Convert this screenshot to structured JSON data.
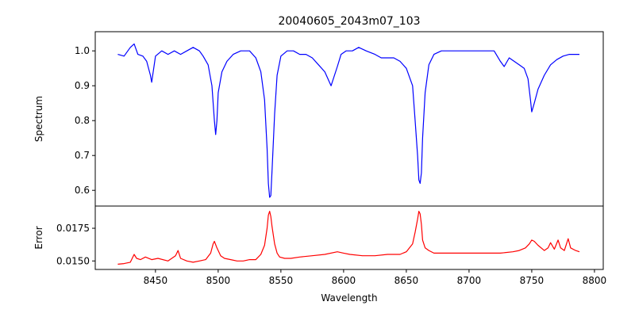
{
  "title": "20040605_2043m07_103",
  "chart_data": [
    {
      "type": "line",
      "name": "spectrum-panel",
      "ylabel": "Spectrum",
      "xlim": [
        8402,
        8807
      ],
      "ylim": [
        0.555,
        1.055
      ],
      "yticks": [
        0.6,
        0.7,
        0.8,
        0.9,
        1.0
      ],
      "ytick_labels": [
        "0.6",
        "0.7",
        "0.8",
        "0.9",
        "1.0"
      ],
      "color": "#0000ff",
      "x": [
        8420,
        8425,
        8430,
        8433,
        8436,
        8440,
        8443,
        8446,
        8447,
        8450,
        8455,
        8460,
        8465,
        8470,
        8475,
        8480,
        8485,
        8488,
        8492,
        8495,
        8497,
        8498,
        8499,
        8500,
        8503,
        8507,
        8512,
        8518,
        8525,
        8530,
        8534,
        8537,
        8539,
        8540,
        8541,
        8542,
        8543,
        8545,
        8547,
        8550,
        8555,
        8560,
        8565,
        8570,
        8575,
        8580,
        8585,
        8590,
        8595,
        8598,
        8602,
        8607,
        8612,
        8618,
        8625,
        8630,
        8635,
        8640,
        8645,
        8650,
        8655,
        8657,
        8659,
        8660,
        8661,
        8662,
        8663,
        8665,
        8668,
        8672,
        8678,
        8685,
        8690,
        8695,
        8700,
        8705,
        8710,
        8715,
        8720,
        8725,
        8728,
        8732,
        8736,
        8740,
        8744,
        8747,
        8749,
        8750,
        8752,
        8755,
        8760,
        8765,
        8770,
        8775,
        8780,
        8785,
        8788
      ],
      "y": [
        0.99,
        0.985,
        1.01,
        1.02,
        0.99,
        0.985,
        0.97,
        0.93,
        0.91,
        0.985,
        1.0,
        0.99,
        1.0,
        0.99,
        1.0,
        1.01,
        1.0,
        0.985,
        0.96,
        0.9,
        0.8,
        0.76,
        0.8,
        0.88,
        0.94,
        0.97,
        0.99,
        1.0,
        1.0,
        0.98,
        0.94,
        0.86,
        0.72,
        0.62,
        0.58,
        0.585,
        0.66,
        0.82,
        0.93,
        0.985,
        1.0,
        1.0,
        0.99,
        0.99,
        0.98,
        0.96,
        0.94,
        0.9,
        0.955,
        0.99,
        1.0,
        1.0,
        1.01,
        1.0,
        0.99,
        0.98,
        0.98,
        0.98,
        0.97,
        0.95,
        0.9,
        0.8,
        0.7,
        0.63,
        0.62,
        0.65,
        0.75,
        0.88,
        0.96,
        0.99,
        1.0,
        1.0,
        1.0,
        1.0,
        1.0,
        1.0,
        1.0,
        1.0,
        1.0,
        0.97,
        0.955,
        0.98,
        0.97,
        0.96,
        0.95,
        0.92,
        0.86,
        0.825,
        0.85,
        0.89,
        0.93,
        0.96,
        0.975,
        0.985,
        0.99,
        0.99,
        0.99
      ]
    },
    {
      "type": "line",
      "name": "error-panel",
      "xlabel": "Wavelength",
      "ylabel": "Error",
      "xlim": [
        8402,
        8807
      ],
      "ylim": [
        0.01435,
        0.0192
      ],
      "xticks": [
        8450,
        8500,
        8550,
        8600,
        8650,
        8700,
        8750,
        8800
      ],
      "xtick_labels": [
        "8450",
        "8500",
        "8550",
        "8600",
        "8650",
        "8700",
        "8750",
        "8800"
      ],
      "yticks": [
        0.015,
        0.0175
      ],
      "ytick_labels": [
        "0.0150",
        "0.0175"
      ],
      "color": "#ff0000",
      "x": [
        8420,
        8425,
        8430,
        8433,
        8435,
        8438,
        8442,
        8447,
        8452,
        8460,
        8466,
        8468,
        8470,
        8475,
        8480,
        8485,
        8490,
        8494,
        8496,
        8497,
        8499,
        8502,
        8505,
        8510,
        8515,
        8520,
        8525,
        8530,
        8534,
        8537,
        8539,
        8540,
        8541,
        8542,
        8543,
        8545,
        8547,
        8549,
        8553,
        8558,
        8565,
        8575,
        8585,
        8595,
        8600,
        8605,
        8615,
        8625,
        8635,
        8645,
        8650,
        8655,
        8657,
        8659,
        8660,
        8661,
        8662,
        8663,
        8665,
        8668,
        8672,
        8680,
        8690,
        8700,
        8710,
        8720,
        8725,
        8735,
        8740,
        8745,
        8748,
        8750,
        8752,
        8755,
        8760,
        8763,
        8765,
        8768,
        8771,
        8773,
        8776,
        8779,
        8781,
        8785,
        8788
      ],
      "y": [
        0.01475,
        0.0148,
        0.0149,
        0.0155,
        0.0152,
        0.0151,
        0.0153,
        0.0151,
        0.0152,
        0.015,
        0.0154,
        0.0158,
        0.0152,
        0.015,
        0.0149,
        0.015,
        0.0151,
        0.0156,
        0.0163,
        0.0165,
        0.016,
        0.0154,
        0.0152,
        0.0151,
        0.015,
        0.015,
        0.0151,
        0.0151,
        0.0155,
        0.0162,
        0.0175,
        0.0185,
        0.0188,
        0.0184,
        0.0176,
        0.0163,
        0.0156,
        0.0153,
        0.0152,
        0.0152,
        0.0153,
        0.0154,
        0.0155,
        0.0157,
        0.0156,
        0.0155,
        0.0154,
        0.0154,
        0.0155,
        0.0155,
        0.0157,
        0.0163,
        0.0172,
        0.0182,
        0.0188,
        0.0186,
        0.0178,
        0.0166,
        0.016,
        0.0158,
        0.0156,
        0.0156,
        0.0156,
        0.0156,
        0.0156,
        0.0156,
        0.0156,
        0.0157,
        0.0158,
        0.016,
        0.0163,
        0.0166,
        0.0165,
        0.0162,
        0.0158,
        0.016,
        0.0164,
        0.0159,
        0.0166,
        0.016,
        0.0158,
        0.0167,
        0.016,
        0.0158,
        0.0157
      ]
    }
  ]
}
